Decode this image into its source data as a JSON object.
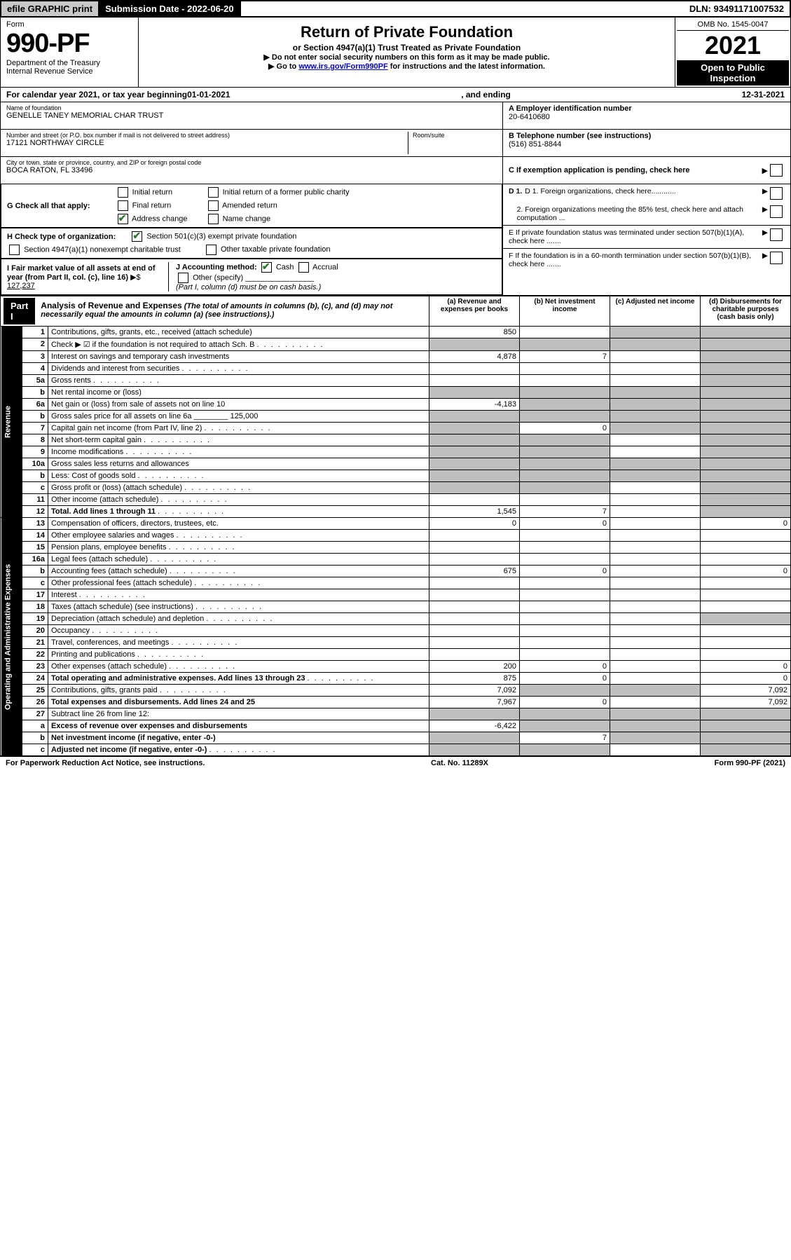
{
  "topbar": {
    "efile": "efile GRAPHIC print",
    "submission": "Submission Date - 2022-06-20",
    "dln": "DLN: 93491171007532"
  },
  "header": {
    "form_label": "Form",
    "form_num": "990-PF",
    "dept1": "Department of the Treasury",
    "dept2": "Internal Revenue Service",
    "title": "Return of Private Foundation",
    "subtitle": "or Section 4947(a)(1) Trust Treated as Private Foundation",
    "note1": "▶ Do not enter social security numbers on this form as it may be made public.",
    "note2": "▶ Go to ",
    "note2_link": "www.irs.gov/Form990PF",
    "note2_tail": " for instructions and the latest information.",
    "omb": "OMB No. 1545-0047",
    "year": "2021",
    "open": "Open to Public Inspection"
  },
  "cal_year": {
    "prefix": "For calendar year 2021, or tax year beginning ",
    "begin": "01-01-2021",
    "mid": " , and ending ",
    "end": "12-31-2021"
  },
  "name_block": {
    "label": "Name of foundation",
    "value": "GENELLE TANEY MEMORIAL CHAR TRUST",
    "addr_label": "Number and street (or P.O. box number if mail is not delivered to street address)",
    "addr_value": "17121 NORTHWAY CIRCLE",
    "room_label": "Room/suite",
    "city_label": "City or town, state or province, country, and ZIP or foreign postal code",
    "city_value": "BOCA RATON, FL  33496"
  },
  "right_block": {
    "a_label": "A Employer identification number",
    "a_value": "20-6410680",
    "b_label": "B Telephone number (see instructions)",
    "b_value": "(516) 851-8844",
    "c_label": "C If exemption application is pending, check here",
    "d1": "D 1. Foreign organizations, check here............",
    "d2": "2. Foreign organizations meeting the 85% test, check here and attach computation ...",
    "e": "E  If private foundation status was terminated under section 507(b)(1)(A), check here .......",
    "f": "F  If the foundation is in a 60-month termination under section 507(b)(1)(B), check here ......."
  },
  "g": {
    "label": "G Check all that apply:",
    "opts": [
      "Initial return",
      "Final return",
      "Address change",
      "Initial return of a former public charity",
      "Amended return",
      "Name change"
    ]
  },
  "h": {
    "label": "H Check type of organization:",
    "opt1": "Section 501(c)(3) exempt private foundation",
    "opt2": "Section 4947(a)(1) nonexempt charitable trust",
    "opt3": "Other taxable private foundation"
  },
  "i": {
    "label": "I Fair market value of all assets at end of year (from Part II, col. (c), line 16)",
    "arrow": "▶$",
    "value": "127,237"
  },
  "j": {
    "label": "J Accounting method:",
    "cash": "Cash",
    "accrual": "Accrual",
    "other": "Other (specify)",
    "note": "(Part I, column (d) must be on cash basis.)"
  },
  "part1": {
    "tab": "Part I",
    "title_bold": "Analysis of Revenue and Expenses",
    "title_rest": " (The total of amounts in columns (b), (c), and (d) may not necessarily equal the amounts in column (a) (see instructions).)",
    "col_a": "(a)  Revenue and expenses per books",
    "col_b": "(b)  Net investment income",
    "col_c": "(c)  Adjusted net income",
    "col_d": "(d)  Disbursements for charitable purposes (cash basis only)"
  },
  "side_labels": {
    "revenue": "Revenue",
    "expenses": "Operating and Administrative Expenses"
  },
  "rows": [
    {
      "n": "1",
      "desc": "Contributions, gifts, grants, etc., received (attach schedule)",
      "a": "850",
      "b": "",
      "c": "sh",
      "d": "sh"
    },
    {
      "n": "2",
      "desc": "Check ▶ ☑ if the foundation is not required to attach Sch. B",
      "a": "sh",
      "b": "sh",
      "c": "sh",
      "d": "sh",
      "dots": true
    },
    {
      "n": "3",
      "desc": "Interest on savings and temporary cash investments",
      "a": "4,878",
      "b": "7",
      "c": "",
      "d": "sh"
    },
    {
      "n": "4",
      "desc": "Dividends and interest from securities",
      "a": "",
      "b": "",
      "c": "",
      "d": "sh",
      "dots": true
    },
    {
      "n": "5a",
      "desc": "Gross rents",
      "a": "",
      "b": "",
      "c": "",
      "d": "sh",
      "dots": true
    },
    {
      "n": "b",
      "desc": "Net rental income or (loss)",
      "a": "sh",
      "b": "sh",
      "c": "sh",
      "d": "sh"
    },
    {
      "n": "6a",
      "desc": "Net gain or (loss) from sale of assets not on line 10",
      "a": "-4,183",
      "b": "sh",
      "c": "sh",
      "d": "sh"
    },
    {
      "n": "b",
      "desc": "Gross sales price for all assets on line 6a ________ 125,000",
      "a": "sh",
      "b": "sh",
      "c": "sh",
      "d": "sh"
    },
    {
      "n": "7",
      "desc": "Capital gain net income (from Part IV, line 2)",
      "a": "sh",
      "b": "0",
      "c": "sh",
      "d": "sh",
      "dots": true
    },
    {
      "n": "8",
      "desc": "Net short-term capital gain",
      "a": "sh",
      "b": "sh",
      "c": "",
      "d": "sh",
      "dots": true
    },
    {
      "n": "9",
      "desc": "Income modifications",
      "a": "sh",
      "b": "sh",
      "c": "",
      "d": "sh",
      "dots": true
    },
    {
      "n": "10a",
      "desc": "Gross sales less returns and allowances",
      "a": "sh",
      "b": "sh",
      "c": "sh",
      "d": "sh"
    },
    {
      "n": "b",
      "desc": "Less: Cost of goods sold",
      "a": "sh",
      "b": "sh",
      "c": "sh",
      "d": "sh",
      "dots": true
    },
    {
      "n": "c",
      "desc": "Gross profit or (loss) (attach schedule)",
      "a": "sh",
      "b": "sh",
      "c": "",
      "d": "sh",
      "dots": true
    },
    {
      "n": "11",
      "desc": "Other income (attach schedule)",
      "a": "",
      "b": "",
      "c": "",
      "d": "sh",
      "dots": true
    },
    {
      "n": "12",
      "desc": "Total. Add lines 1 through 11",
      "a": "1,545",
      "b": "7",
      "c": "",
      "d": "sh",
      "bold": true,
      "dots": true
    }
  ],
  "exp_rows": [
    {
      "n": "13",
      "desc": "Compensation of officers, directors, trustees, etc.",
      "a": "0",
      "b": "0",
      "c": "",
      "d": "0"
    },
    {
      "n": "14",
      "desc": "Other employee salaries and wages",
      "a": "",
      "b": "",
      "c": "",
      "d": "",
      "dots": true
    },
    {
      "n": "15",
      "desc": "Pension plans, employee benefits",
      "a": "",
      "b": "",
      "c": "",
      "d": "",
      "dots": true
    },
    {
      "n": "16a",
      "desc": "Legal fees (attach schedule)",
      "a": "",
      "b": "",
      "c": "",
      "d": "",
      "dots": true
    },
    {
      "n": "b",
      "desc": "Accounting fees (attach schedule)",
      "a": "675",
      "b": "0",
      "c": "",
      "d": "0",
      "dots": true
    },
    {
      "n": "c",
      "desc": "Other professional fees (attach schedule)",
      "a": "",
      "b": "",
      "c": "",
      "d": "",
      "dots": true
    },
    {
      "n": "17",
      "desc": "Interest",
      "a": "",
      "b": "",
      "c": "",
      "d": "",
      "dots": true
    },
    {
      "n": "18",
      "desc": "Taxes (attach schedule) (see instructions)",
      "a": "",
      "b": "",
      "c": "",
      "d": "",
      "dots": true
    },
    {
      "n": "19",
      "desc": "Depreciation (attach schedule) and depletion",
      "a": "",
      "b": "",
      "c": "",
      "d": "sh",
      "dots": true
    },
    {
      "n": "20",
      "desc": "Occupancy",
      "a": "",
      "b": "",
      "c": "",
      "d": "",
      "dots": true
    },
    {
      "n": "21",
      "desc": "Travel, conferences, and meetings",
      "a": "",
      "b": "",
      "c": "",
      "d": "",
      "dots": true
    },
    {
      "n": "22",
      "desc": "Printing and publications",
      "a": "",
      "b": "",
      "c": "",
      "d": "",
      "dots": true
    },
    {
      "n": "23",
      "desc": "Other expenses (attach schedule)",
      "a": "200",
      "b": "0",
      "c": "",
      "d": "0",
      "dots": true
    },
    {
      "n": "24",
      "desc": "Total operating and administrative expenses. Add lines 13 through 23",
      "a": "875",
      "b": "0",
      "c": "",
      "d": "0",
      "bold": true,
      "dots": true
    },
    {
      "n": "25",
      "desc": "Contributions, gifts, grants paid",
      "a": "7,092",
      "b": "sh",
      "c": "sh",
      "d": "7,092",
      "dots": true
    },
    {
      "n": "26",
      "desc": "Total expenses and disbursements. Add lines 24 and 25",
      "a": "7,967",
      "b": "0",
      "c": "",
      "d": "7,092",
      "bold": true
    },
    {
      "n": "27",
      "desc": "Subtract line 26 from line 12:",
      "a": "sh",
      "b": "sh",
      "c": "sh",
      "d": "sh"
    },
    {
      "n": "a",
      "desc": "Excess of revenue over expenses and disbursements",
      "a": "-6,422",
      "b": "sh",
      "c": "sh",
      "d": "sh",
      "bold": true
    },
    {
      "n": "b",
      "desc": "Net investment income (if negative, enter -0-)",
      "a": "sh",
      "b": "7",
      "c": "sh",
      "d": "sh",
      "bold": true
    },
    {
      "n": "c",
      "desc": "Adjusted net income (if negative, enter -0-)",
      "a": "sh",
      "b": "sh",
      "c": "",
      "d": "sh",
      "bold": true,
      "dots": true
    }
  ],
  "footer": {
    "left": "For Paperwork Reduction Act Notice, see instructions.",
    "mid": "Cat. No. 11289X",
    "right": "Form 990-PF (2021)"
  },
  "colors": {
    "shade": "#bfbfbf",
    "black": "#000000",
    "green_check": "#2a7a2a"
  }
}
